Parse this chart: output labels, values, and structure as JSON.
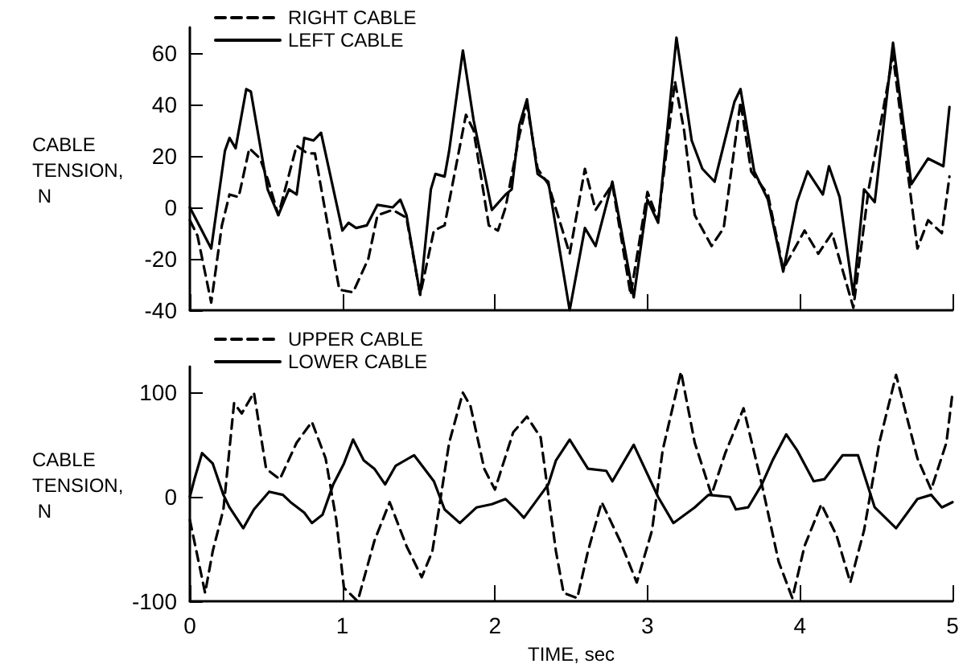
{
  "chart_data": [
    {
      "type": "line",
      "ylabel": "CABLE TENSION, N",
      "xlim": [
        0,
        5
      ],
      "xticks": [
        0,
        1,
        2,
        3,
        4,
        5
      ],
      "ylim": [
        -40,
        70
      ],
      "yticks": [
        -40,
        -20,
        0,
        20,
        40,
        60
      ],
      "tick_labels": "y",
      "grid": false,
      "legend": "top left",
      "marker": "none",
      "series": [
        {
          "name": "RIGHT CABLE",
          "color": "#000000",
          "line_style": "dashed",
          "x": [
            0,
            0.05,
            0.14,
            0.21,
            0.26,
            0.32,
            0.39,
            0.46,
            0.51,
            0.58,
            0.7,
            0.77,
            0.82,
            0.98,
            1.07,
            1.17,
            1.23,
            1.33,
            1.42,
            1.51,
            1.6,
            1.67,
            1.81,
            1.86,
            1.96,
            2.02,
            2.07,
            2.16,
            2.21,
            2.28,
            2.35,
            2.49,
            2.59,
            2.66,
            2.77,
            2.89,
            3.0,
            3.07,
            3.18,
            3.24,
            3.31,
            3.42,
            3.5,
            3.61,
            3.68,
            3.79,
            3.89,
            4.03,
            4.12,
            4.21,
            4.35,
            4.45,
            4.61,
            4.68,
            4.77,
            4.84,
            4.93,
            4.98
          ],
          "values": [
            -5,
            -11,
            -37,
            -7,
            5,
            4,
            23,
            19,
            11,
            -3,
            24,
            21,
            21,
            -32,
            -33,
            -20,
            -3,
            -1,
            -4,
            -34,
            -9,
            -7,
            36,
            30,
            -7,
            -9,
            0,
            28,
            40,
            15,
            9,
            -18,
            15,
            -1,
            9,
            -34,
            6,
            -5,
            49,
            30,
            -3,
            -15,
            -8,
            41,
            14,
            5,
            -24,
            -9,
            -18,
            -10,
            -39,
            7,
            59,
            26,
            -16,
            -5,
            -10,
            12
          ]
        },
        {
          "name": "LEFT CABLE",
          "color": "#000000",
          "line_style": "solid",
          "x": [
            0,
            0.14,
            0.23,
            0.26,
            0.3,
            0.37,
            0.4,
            0.51,
            0.58,
            0.65,
            0.7,
            0.75,
            0.81,
            0.86,
            1.0,
            1.04,
            1.09,
            1.16,
            1.23,
            1.33,
            1.38,
            1.42,
            1.51,
            1.58,
            1.61,
            1.67,
            1.7,
            1.79,
            1.86,
            1.98,
            2.07,
            2.11,
            2.16,
            2.21,
            2.28,
            2.35,
            2.49,
            2.59,
            2.66,
            2.77,
            2.91,
            3.0,
            3.07,
            3.19,
            3.29,
            3.36,
            3.44,
            3.57,
            3.61,
            3.7,
            3.79,
            3.89,
            3.98,
            4.05,
            4.15,
            4.19,
            4.26,
            4.35,
            4.42,
            4.49,
            4.61,
            4.73,
            4.84,
            4.94,
            4.98
          ],
          "values": [
            0,
            -16,
            22,
            27,
            23,
            46,
            45,
            7,
            -3,
            7,
            5,
            27,
            26,
            29,
            -9,
            -6,
            -8,
            -7,
            1,
            0,
            3,
            -3,
            -34,
            7,
            13,
            12,
            22,
            61,
            34,
            -1,
            5,
            7,
            32,
            42,
            13,
            10,
            -40,
            -8,
            -15,
            10,
            -35,
            3,
            -6,
            66,
            26,
            15,
            10,
            41,
            46,
            14,
            3,
            -25,
            2,
            14,
            5,
            16,
            4,
            -34,
            7,
            2,
            64,
            9,
            19,
            16,
            39
          ]
        }
      ]
    },
    {
      "type": "line",
      "xlabel": "TIME, sec",
      "ylabel": "CABLE TENSION, N",
      "xlim": [
        0,
        5
      ],
      "xticks": [
        0,
        1,
        2,
        3,
        4,
        5
      ],
      "ylim": [
        -100,
        125
      ],
      "yticks": [
        -100,
        0,
        100
      ],
      "grid": false,
      "legend": "top left",
      "marker": "none",
      "series": [
        {
          "name": "UPPER CABLE",
          "color": "#000000",
          "line_style": "dashed",
          "x": [
            0,
            0.1,
            0.15,
            0.22,
            0.29,
            0.34,
            0.42,
            0.5,
            0.59,
            0.7,
            0.8,
            0.89,
            0.96,
            1.01,
            1.1,
            1.21,
            1.31,
            1.42,
            1.52,
            1.59,
            1.7,
            1.79,
            1.84,
            1.93,
            2.0,
            2.12,
            2.21,
            2.3,
            2.4,
            2.45,
            2.54,
            2.61,
            2.7,
            2.82,
            2.93,
            3.03,
            3.1,
            3.22,
            3.31,
            3.42,
            3.51,
            3.63,
            3.75,
            3.86,
            3.95,
            4.03,
            4.14,
            4.24,
            4.33,
            4.42,
            4.52,
            4.63,
            4.77,
            4.86,
            4.96,
            5.0
          ],
          "values": [
            -22,
            -92,
            -52,
            -12,
            90,
            80,
            100,
            27,
            17,
            52,
            72,
            37,
            -22,
            -87,
            -100,
            -42,
            -5,
            -47,
            -77,
            -52,
            52,
            100,
            87,
            27,
            7,
            62,
            77,
            57,
            -52,
            -92,
            -97,
            -52,
            -5,
            -42,
            -82,
            -32,
            45,
            120,
            52,
            2,
            42,
            85,
            12,
            -62,
            -97,
            -47,
            -7,
            -37,
            -82,
            -32,
            52,
            117,
            37,
            7,
            52,
            100
          ]
        },
        {
          "name": "LOWER CABLE",
          "color": "#000000",
          "line_style": "solid",
          "x": [
            0,
            0.03,
            0.08,
            0.15,
            0.22,
            0.26,
            0.35,
            0.42,
            0.52,
            0.61,
            0.66,
            0.75,
            0.8,
            0.87,
            0.94,
            1.01,
            1.07,
            1.14,
            1.21,
            1.28,
            1.35,
            1.47,
            1.6,
            1.67,
            1.77,
            1.88,
            1.98,
            2.07,
            2.14,
            2.19,
            2.35,
            2.4,
            2.49,
            2.61,
            2.73,
            2.77,
            2.91,
            3.07,
            3.17,
            3.31,
            3.4,
            3.54,
            3.58,
            3.66,
            3.75,
            3.82,
            3.91,
            3.98,
            4.09,
            4.16,
            4.28,
            4.38,
            4.49,
            4.63,
            4.77,
            4.86,
            4.93,
            5.0
          ],
          "values": [
            0,
            17,
            42,
            32,
            2,
            -10,
            -30,
            -12,
            5,
            2,
            -5,
            -15,
            -25,
            -17,
            12,
            32,
            55,
            35,
            27,
            12,
            30,
            40,
            15,
            -12,
            -25,
            -10,
            -7,
            -2,
            -12,
            -20,
            12,
            35,
            55,
            27,
            25,
            15,
            50,
            0,
            -25,
            -10,
            2,
            0,
            -12,
            -10,
            12,
            35,
            60,
            45,
            15,
            17,
            40,
            40,
            -10,
            -30,
            -2,
            2,
            -10,
            -5
          ]
        }
      ]
    }
  ]
}
